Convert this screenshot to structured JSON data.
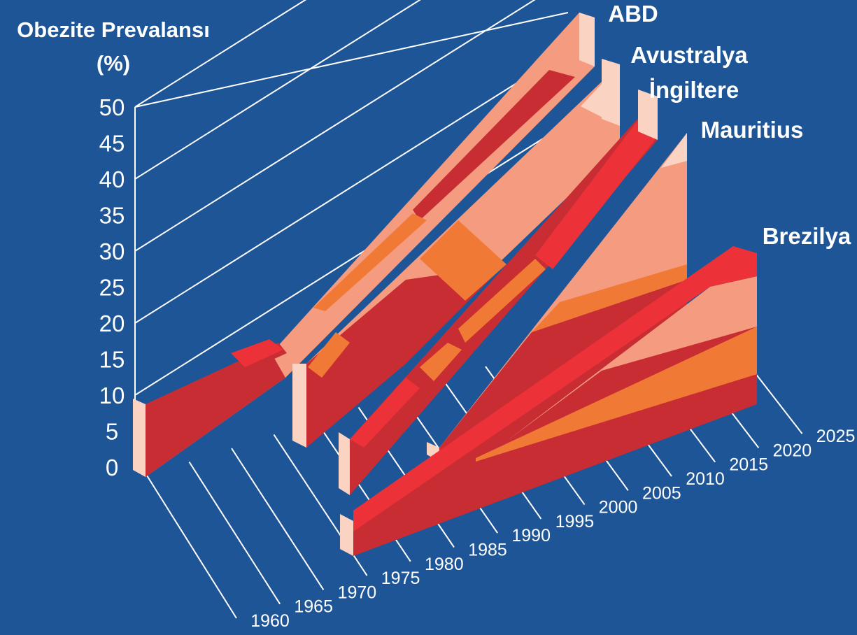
{
  "colors": {
    "background": "#1e5597",
    "axis_lines": "#ffffff",
    "face_top_salmon": "#f49b80",
    "face_light_pink": "#fbd3c2",
    "band_dark_red": "#c82d34",
    "band_bright_red": "#ec3238",
    "band_orange": "#f07a35"
  },
  "chart_data": {
    "type": "area",
    "title": "Obezite Prevalansı",
    "ylabel": "(%)",
    "ylim": [
      0,
      50
    ],
    "y_ticks": [
      "0",
      "5",
      "10",
      "15",
      "20",
      "25",
      "30",
      "35",
      "40",
      "45",
      "50"
    ],
    "x_ticks": [
      "1960",
      "1965",
      "1970",
      "1975",
      "1980",
      "1985",
      "1990",
      "1995",
      "2000",
      "2005",
      "2010",
      "2015",
      "2020",
      "2025"
    ],
    "legend": "series names printed at the right-hand end of each ribbon",
    "series": [
      {
        "name": "ABD",
        "x": [
          1960,
          1970,
          1980,
          1990,
          2000,
          2010,
          2020,
          2025
        ],
        "values": [
          13,
          14,
          15,
          23,
          31,
          38,
          45,
          49
        ]
      },
      {
        "name": "Avustralya",
        "x": [
          1980,
          1990,
          2000,
          2010,
          2020,
          2025
        ],
        "values": [
          8,
          11,
          21,
          30,
          38,
          42
        ]
      },
      {
        "name": "İngiltere",
        "x": [
          1980,
          1990,
          2000,
          2010,
          2020,
          2025
        ],
        "values": [
          7,
          14,
          21,
          29,
          36,
          41
        ]
      },
      {
        "name": "Mauritius",
        "x": [
          1985,
          1990,
          2000,
          2010,
          2020,
          2025
        ],
        "values": [
          1,
          3,
          11,
          21,
          31,
          36
        ]
      },
      {
        "name": "Brezilya",
        "x": [
          1975,
          1990,
          2000,
          2010,
          2020,
          2025
        ],
        "values": [
          2,
          5,
          9,
          13,
          17,
          19
        ]
      }
    ]
  }
}
